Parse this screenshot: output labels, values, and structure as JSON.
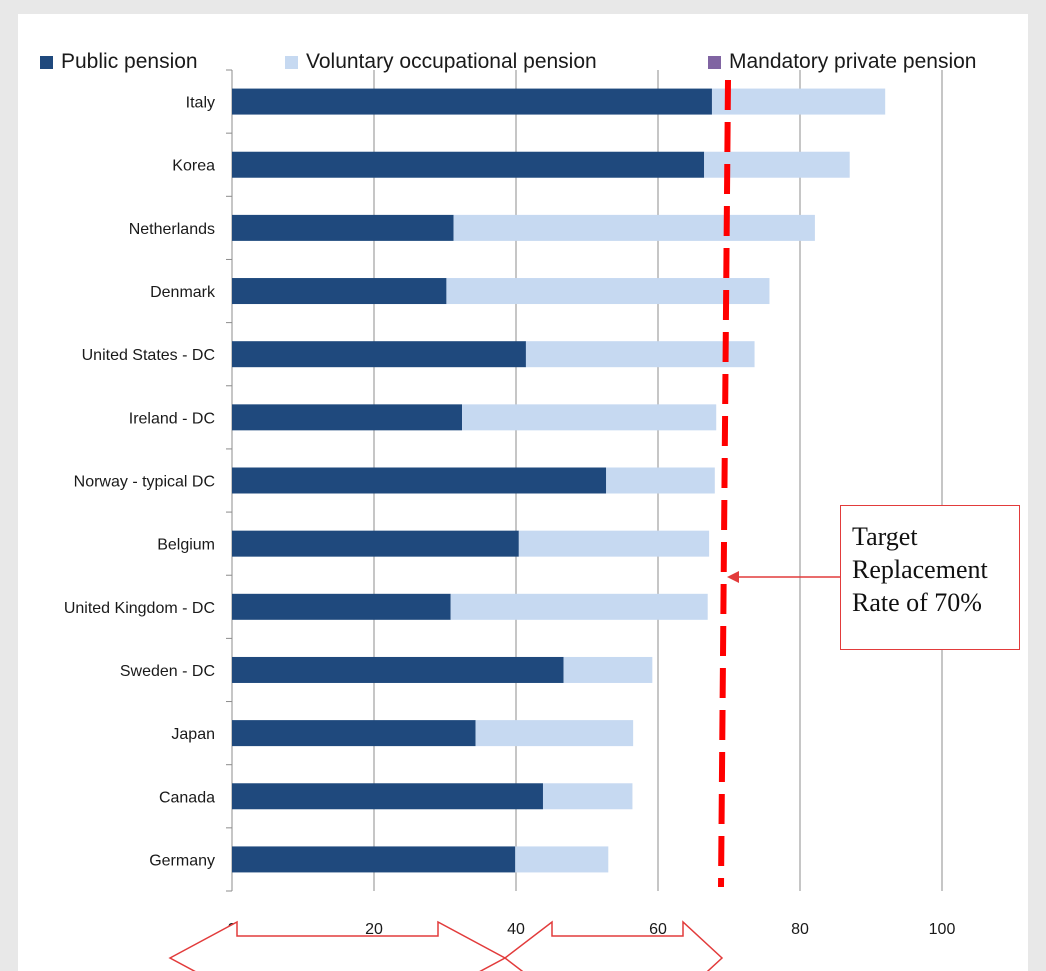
{
  "chart_data": {
    "type": "bar",
    "orientation": "horizontal",
    "stacked": true,
    "categories": [
      "Italy",
      "Korea",
      "Netherlands",
      "Denmark",
      "United States - DC",
      "Ireland - DC",
      "Norway - typical DC",
      "Belgium",
      "United Kingdom - DC",
      "Sweden - DC",
      "Japan",
      "Canada",
      "Germany"
    ],
    "series": [
      {
        "name": "Public pension",
        "color": "#1f497d",
        "values": [
          67.6,
          66.5,
          31.2,
          30.2,
          41.4,
          32.4,
          52.7,
          40.4,
          30.8,
          46.7,
          34.3,
          43.8,
          39.9
        ]
      },
      {
        "name": "Voluntary occupational pension",
        "color": "#c6d9f1",
        "values": [
          24.4,
          20.5,
          50.9,
          45.5,
          32.2,
          35.8,
          15.3,
          26.8,
          36.2,
          12.5,
          22.2,
          12.6,
          13.1
        ]
      },
      {
        "name": "Mandatory private pension",
        "color": "#8064a2",
        "values": [
          0,
          0,
          0,
          0,
          0,
          0,
          0,
          0,
          0,
          0,
          0,
          0,
          0
        ]
      }
    ],
    "xlim": [
      0,
      100
    ],
    "xticks": [
      0,
      20,
      40,
      60,
      80,
      100
    ],
    "grid": true,
    "legend_position": "top",
    "reference_line": {
      "value": 70,
      "style": "dashed",
      "color": "#ff0000"
    },
    "annotation": {
      "text": "Target Replacement Rate of 70%",
      "color": "#e23b3b"
    },
    "xlabel": "",
    "ylabel": "",
    "title": ""
  }
}
